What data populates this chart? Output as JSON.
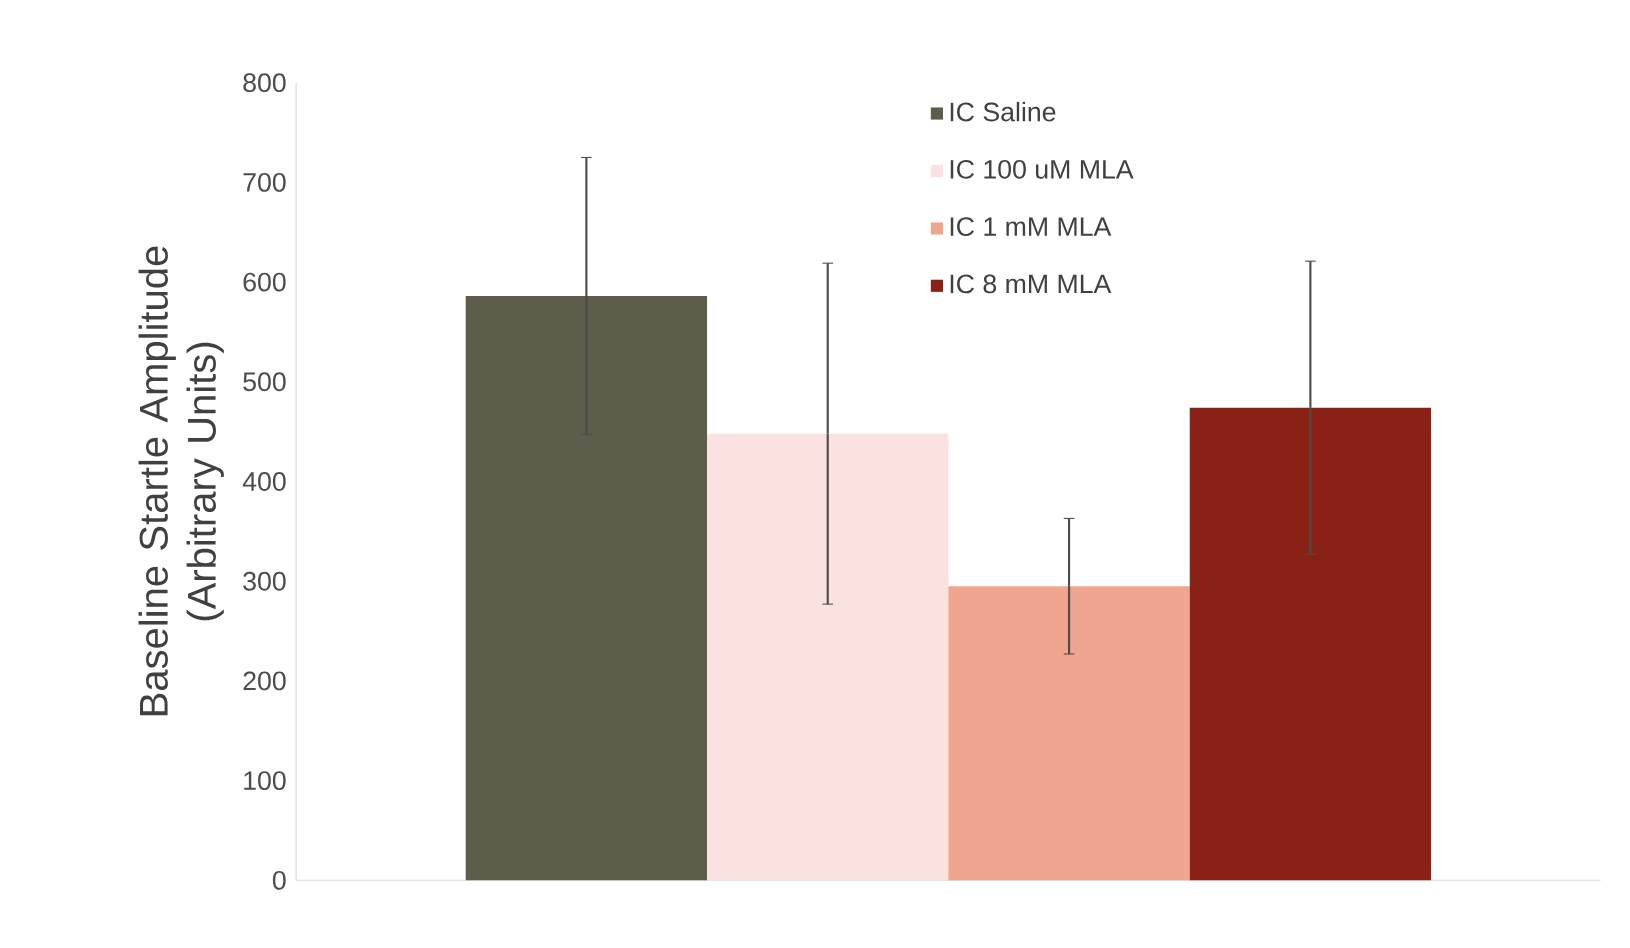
{
  "chart_data": {
    "type": "bar",
    "ylabel": "Baseline Startle Amplitude (Arbitrary Units)",
    "categories": [
      null
    ],
    "series": [
      {
        "name": "IC Saline",
        "color": "#5e5d4c",
        "values": [
          586
        ],
        "errors": [
          139
        ]
      },
      {
        "name": "IC 100 uM MLA",
        "color": "#fbe1df",
        "values": [
          448
        ],
        "errors": [
          171
        ]
      },
      {
        "name": "IC 1 mM MLA",
        "color": "#f0a58f",
        "values": [
          295
        ],
        "errors": [
          68
        ]
      },
      {
        "name": "IC 8 mM MLA",
        "color": "#8a2117",
        "values": [
          474
        ],
        "errors": [
          147
        ]
      }
    ],
    "ylim": [
      0,
      800
    ],
    "yticks": [
      0,
      100,
      200,
      300,
      400,
      500,
      600,
      700,
      800
    ],
    "grid": false,
    "legend": "top right"
  }
}
